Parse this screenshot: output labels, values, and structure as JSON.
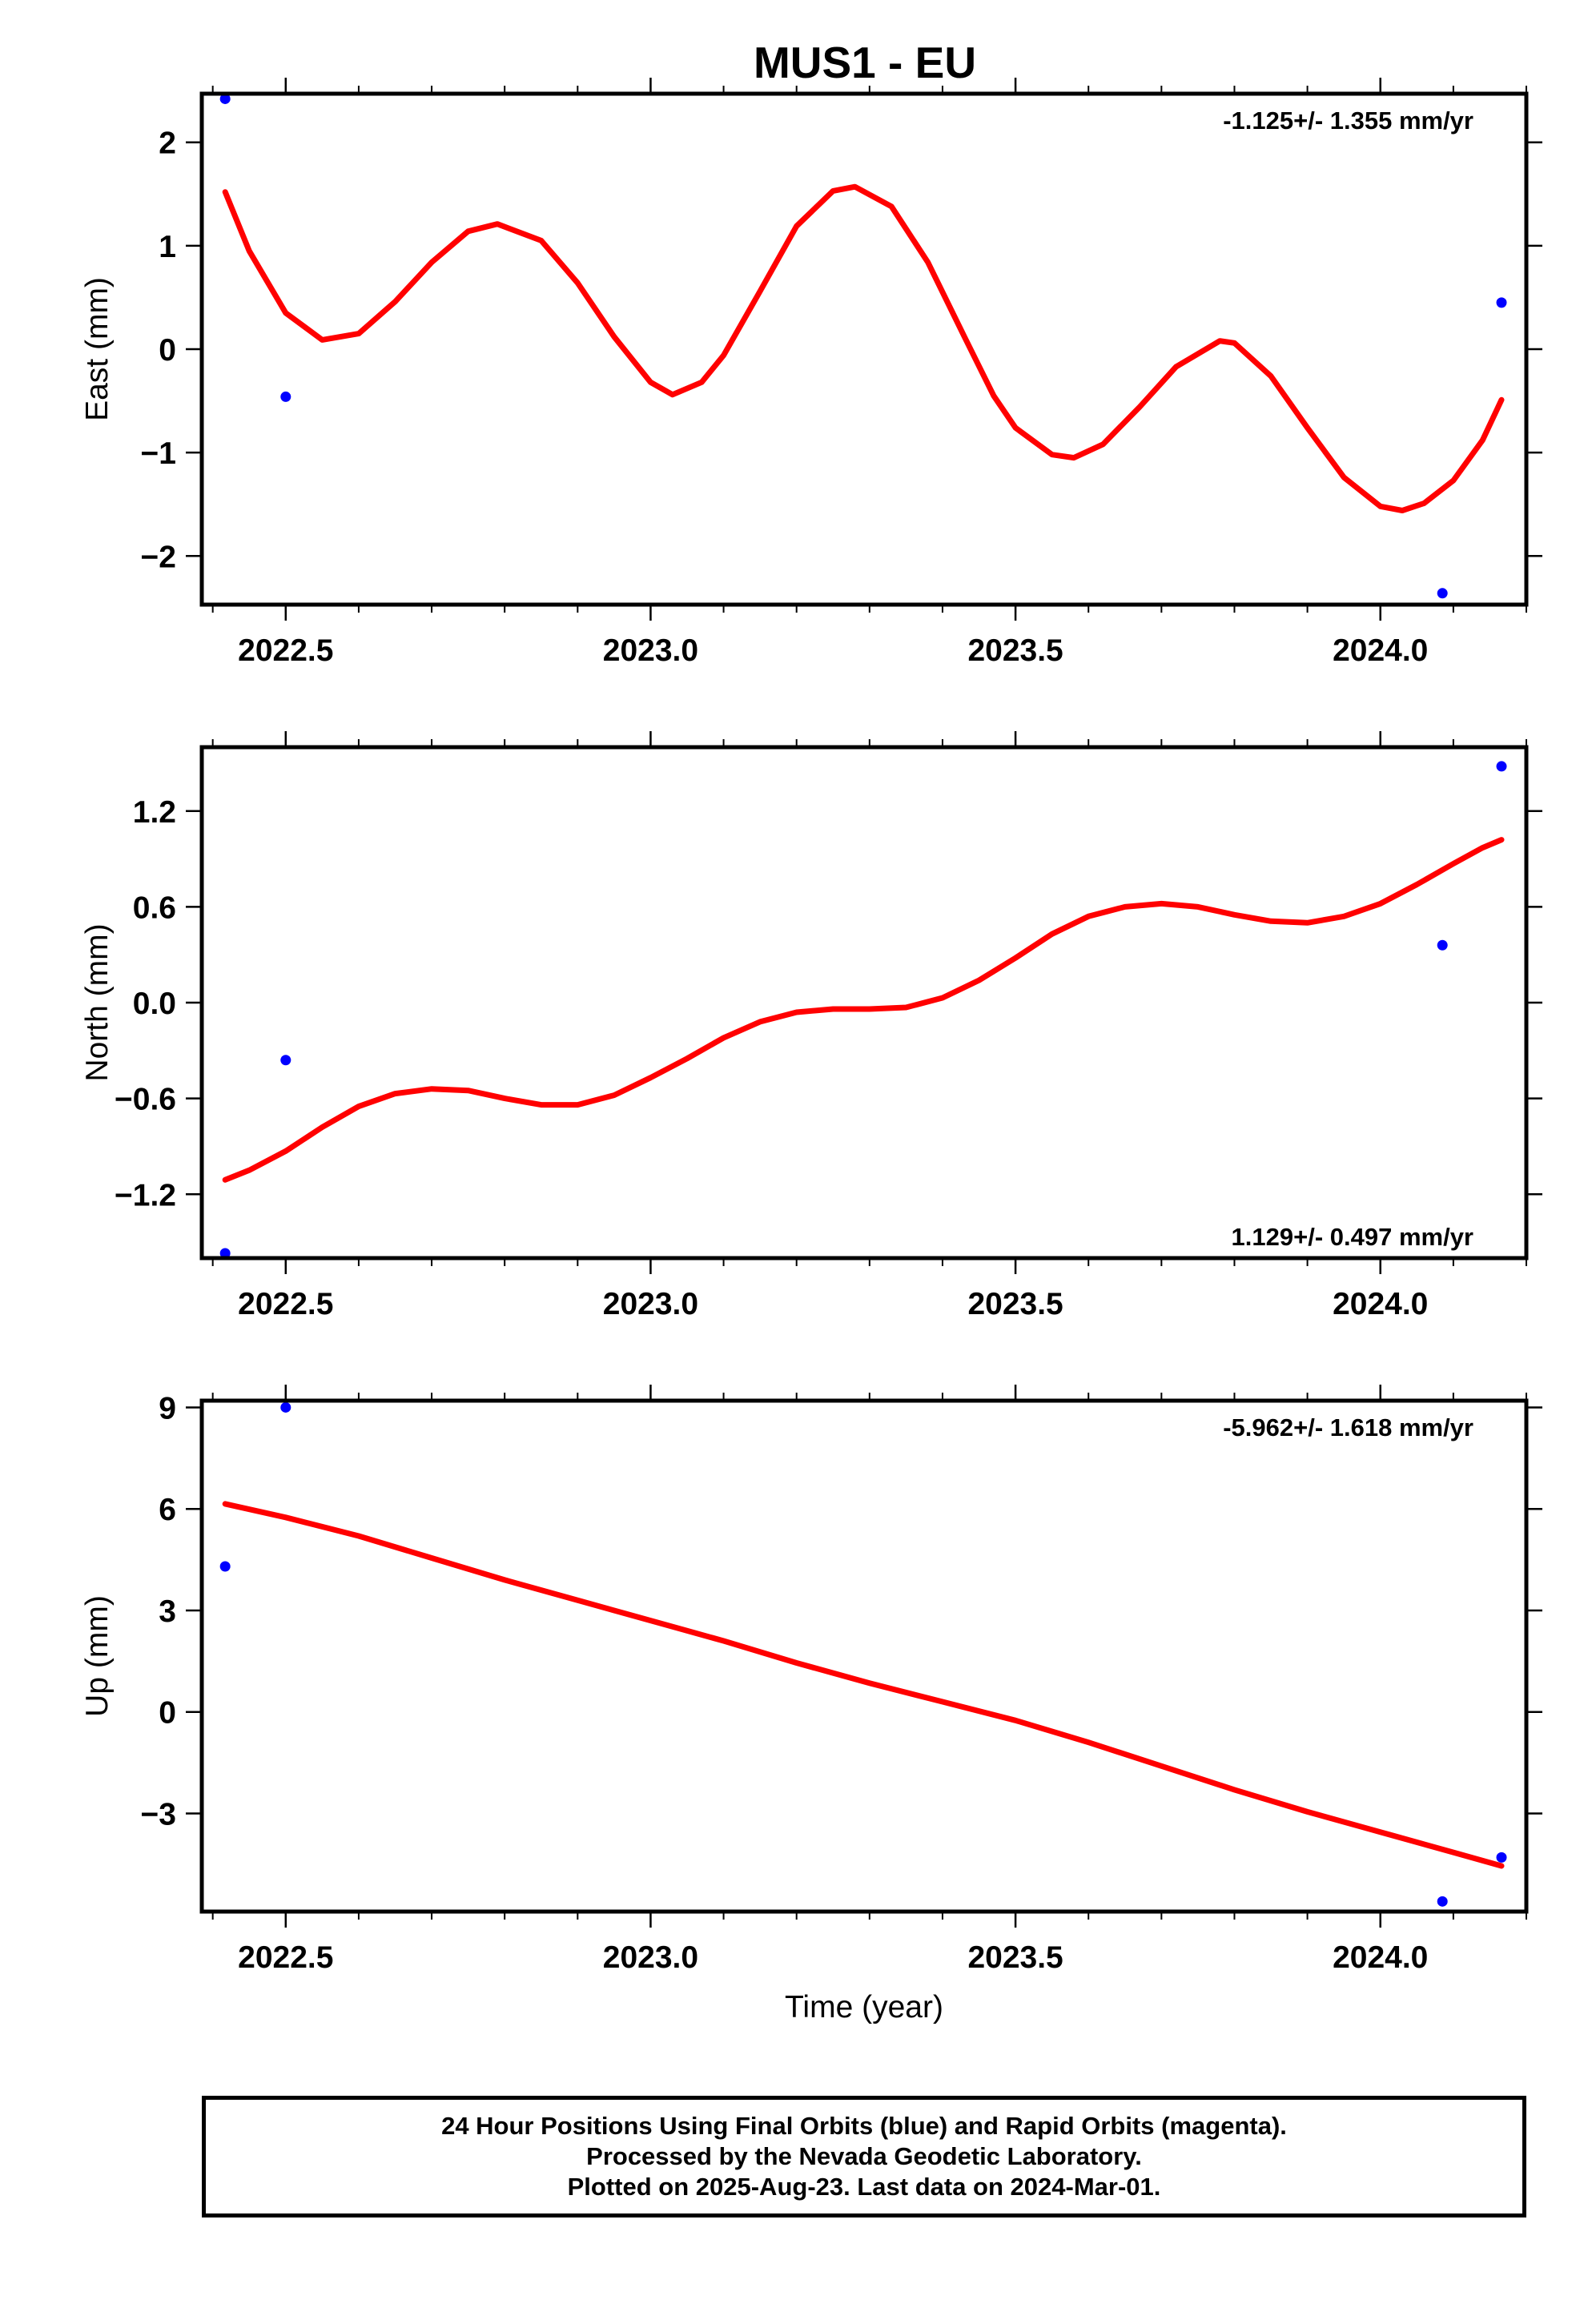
{
  "chart_title": "MUS1 - EU",
  "colors": {
    "fit": "#ff0000",
    "points": "#0000ff",
    "axes": "#000000"
  },
  "chart_data": [
    {
      "type": "scatter",
      "component": "East",
      "ylabel": "East (mm)",
      "xlabel": "",
      "xlim": [
        2022.385,
        2024.2
      ],
      "ylim": [
        -2.47,
        2.47
      ],
      "x_ticks": [
        2022.5,
        2023.0,
        2023.5,
        2024.0
      ],
      "x_tick_labels": [
        "2022.5",
        "2023.0",
        "2023.5",
        "2024.0"
      ],
      "y_ticks": [
        2,
        1,
        0,
        -1,
        -2
      ],
      "y_tick_labels": [
        "2",
        "1",
        "0",
        "−1",
        "−2"
      ],
      "rate_label": "-1.125+/- 1.355 mm/yr",
      "rate_position": "top-right",
      "points": [
        [
          2022.417,
          2.42
        ],
        [
          2022.5,
          -0.46
        ],
        [
          2024.085,
          -2.36
        ],
        [
          2024.166,
          0.45
        ]
      ],
      "fit_curve": [
        [
          2022.417,
          1.52
        ],
        [
          2022.45,
          0.95
        ],
        [
          2022.5,
          0.35
        ],
        [
          2022.55,
          0.09
        ],
        [
          2022.6,
          0.15
        ],
        [
          2022.65,
          0.46
        ],
        [
          2022.7,
          0.84
        ],
        [
          2022.75,
          1.14
        ],
        [
          2022.79,
          1.21
        ],
        [
          2022.85,
          1.05
        ],
        [
          2022.9,
          0.64
        ],
        [
          2022.95,
          0.12
        ],
        [
          2023.0,
          -0.32
        ],
        [
          2023.03,
          -0.44
        ],
        [
          2023.07,
          -0.32
        ],
        [
          2023.1,
          -0.06
        ],
        [
          2023.15,
          0.56
        ],
        [
          2023.2,
          1.19
        ],
        [
          2023.25,
          1.53
        ],
        [
          2023.28,
          1.57
        ],
        [
          2023.33,
          1.38
        ],
        [
          2023.38,
          0.84
        ],
        [
          2023.43,
          0.12
        ],
        [
          2023.47,
          -0.45
        ],
        [
          2023.5,
          -0.76
        ],
        [
          2023.55,
          -1.02
        ],
        [
          2023.58,
          -1.05
        ],
        [
          2023.62,
          -0.92
        ],
        [
          2023.67,
          -0.56
        ],
        [
          2023.72,
          -0.17
        ],
        [
          2023.78,
          0.08
        ],
        [
          2023.8,
          0.06
        ],
        [
          2023.85,
          -0.26
        ],
        [
          2023.9,
          -0.76
        ],
        [
          2023.95,
          -1.24
        ],
        [
          2024.0,
          -1.52
        ],
        [
          2024.03,
          -1.56
        ],
        [
          2024.06,
          -1.49
        ],
        [
          2024.1,
          -1.27
        ],
        [
          2024.14,
          -0.88
        ],
        [
          2024.166,
          -0.49
        ]
      ]
    },
    {
      "type": "scatter",
      "component": "North",
      "ylabel": "North (mm)",
      "xlabel": "",
      "xlim": [
        2022.385,
        2024.2
      ],
      "ylim": [
        -1.6,
        1.6
      ],
      "x_ticks": [
        2022.5,
        2023.0,
        2023.5,
        2024.0
      ],
      "x_tick_labels": [
        "2022.5",
        "2023.0",
        "2023.5",
        "2024.0"
      ],
      "y_ticks": [
        1.2,
        0.6,
        0.0,
        -0.6,
        -1.2
      ],
      "y_tick_labels": [
        "1.2",
        "0.6",
        "0.0",
        "−0.6",
        "−1.2"
      ],
      "rate_label": "1.129+/- 0.497 mm/yr",
      "rate_position": "bottom-right",
      "points": [
        [
          2022.417,
          -1.57
        ],
        [
          2022.5,
          -0.36
        ],
        [
          2024.085,
          0.36
        ],
        [
          2024.166,
          1.48
        ]
      ],
      "fit_curve": [
        [
          2022.417,
          -1.11
        ],
        [
          2022.45,
          -1.05
        ],
        [
          2022.5,
          -0.93
        ],
        [
          2022.55,
          -0.78
        ],
        [
          2022.6,
          -0.65
        ],
        [
          2022.65,
          -0.57
        ],
        [
          2022.7,
          -0.54
        ],
        [
          2022.75,
          -0.55
        ],
        [
          2022.8,
          -0.6
        ],
        [
          2022.85,
          -0.64
        ],
        [
          2022.9,
          -0.64
        ],
        [
          2022.95,
          -0.58
        ],
        [
          2023.0,
          -0.47
        ],
        [
          2023.05,
          -0.35
        ],
        [
          2023.1,
          -0.22
        ],
        [
          2023.15,
          -0.12
        ],
        [
          2023.2,
          -0.06
        ],
        [
          2023.25,
          -0.04
        ],
        [
          2023.3,
          -0.04
        ],
        [
          2023.35,
          -0.03
        ],
        [
          2023.4,
          0.03
        ],
        [
          2023.45,
          0.14
        ],
        [
          2023.5,
          0.28
        ],
        [
          2023.55,
          0.43
        ],
        [
          2023.6,
          0.54
        ],
        [
          2023.65,
          0.6
        ],
        [
          2023.7,
          0.62
        ],
        [
          2023.75,
          0.6
        ],
        [
          2023.8,
          0.55
        ],
        [
          2023.85,
          0.51
        ],
        [
          2023.9,
          0.5
        ],
        [
          2023.95,
          0.54
        ],
        [
          2024.0,
          0.62
        ],
        [
          2024.05,
          0.74
        ],
        [
          2024.1,
          0.87
        ],
        [
          2024.14,
          0.97
        ],
        [
          2024.166,
          1.02
        ]
      ]
    },
    {
      "type": "scatter",
      "component": "Up",
      "ylabel": "Up (mm)",
      "xlabel": "Time (year)",
      "xlim": [
        2022.385,
        2024.2
      ],
      "ylim": [
        -5.9,
        9.2
      ],
      "x_ticks": [
        2022.5,
        2023.0,
        2023.5,
        2024.0
      ],
      "x_tick_labels": [
        "2022.5",
        "2023.0",
        "2023.5",
        "2024.0"
      ],
      "y_ticks": [
        9,
        6,
        3,
        0,
        -3
      ],
      "y_tick_labels": [
        "9",
        "6",
        "3",
        "0",
        "−3"
      ],
      "rate_label": "-5.962+/- 1.618 mm/yr",
      "rate_position": "top-right",
      "points": [
        [
          2022.417,
          4.3
        ],
        [
          2022.5,
          9.0
        ],
        [
          2024.085,
          -5.6
        ],
        [
          2024.166,
          -4.3
        ]
      ],
      "fit_curve": [
        [
          2022.417,
          6.15
        ],
        [
          2022.5,
          5.75
        ],
        [
          2022.6,
          5.2
        ],
        [
          2022.7,
          4.55
        ],
        [
          2022.8,
          3.9
        ],
        [
          2022.9,
          3.3
        ],
        [
          2023.0,
          2.7
        ],
        [
          2023.1,
          2.1
        ],
        [
          2023.2,
          1.45
        ],
        [
          2023.3,
          0.85
        ],
        [
          2023.4,
          0.3
        ],
        [
          2023.5,
          -0.25
        ],
        [
          2023.6,
          -0.9
        ],
        [
          2023.7,
          -1.6
        ],
        [
          2023.8,
          -2.3
        ],
        [
          2023.9,
          -2.95
        ],
        [
          2024.0,
          -3.55
        ],
        [
          2024.1,
          -4.15
        ],
        [
          2024.166,
          -4.55
        ]
      ]
    }
  ],
  "footer": {
    "line1": "24 Hour Positions Using Final Orbits (blue) and Rapid Orbits (magenta).",
    "line2": "Processed by the Nevada Geodetic Laboratory.",
    "line3": "Plotted on 2025-Aug-23. Last data on 2024-Mar-01."
  }
}
